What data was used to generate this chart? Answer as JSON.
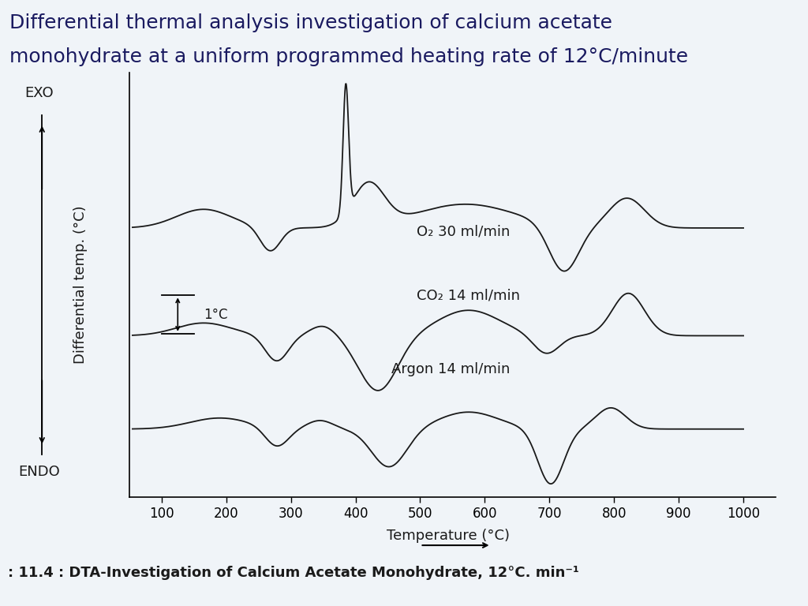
{
  "title_line1": "Differential thermal analysis investigation of calcium acetate",
  "title_line2": "monohydrate at a uniform programmed heating rate of 12°C/minute",
  "title_bg": "#b8cce4",
  "caption": ": 11.4 : DTA-Investigation of Calcium Acetate Monohydrate, 12°C. min⁻¹",
  "xlabel": "Temperature (°C)",
  "ylabel": "Differential temp. (°C)",
  "xlim": [
    50,
    1050
  ],
  "xticks": [
    100,
    200,
    300,
    400,
    500,
    600,
    700,
    800,
    900,
    1000
  ],
  "bg_color": "#f0f4f8",
  "plot_bg": "#f0f4f8",
  "curve_color": "#1a1a1a",
  "label_o2": "O₂ 30 ml/min",
  "label_co2": "CO₂ 14 ml/min",
  "label_argon": "Argon 14 ml/min",
  "exo_label": "EXO",
  "endo_label": "ENDO",
  "scale_label": "1°C"
}
